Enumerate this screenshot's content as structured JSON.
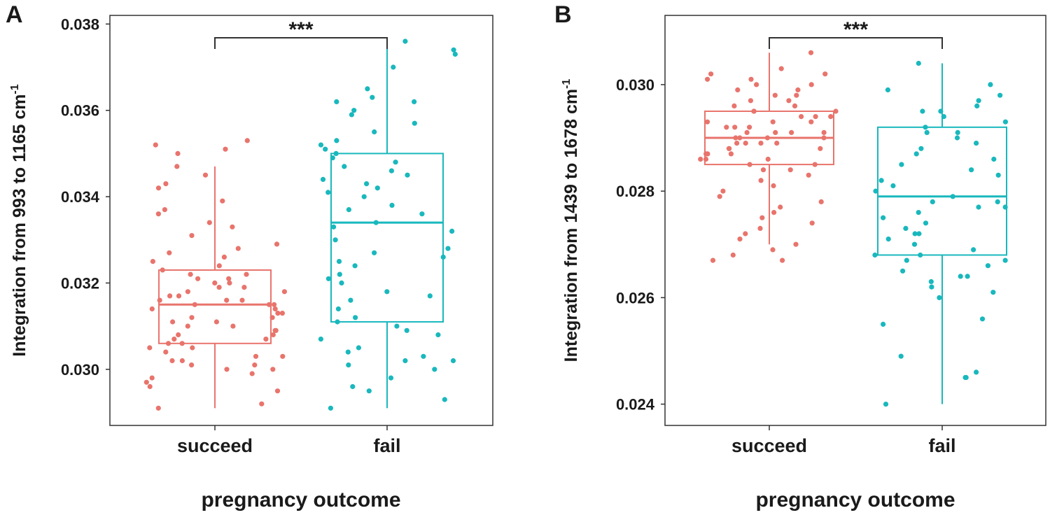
{
  "chart_data": [
    {
      "type": "box",
      "panel_label": "A",
      "significance": "***",
      "xlabel": "pregnancy outcome",
      "ylabel_main": "Integration from 993 to 1165 cm",
      "ylabel_sup": "-1",
      "categories": [
        "succeed",
        "fail"
      ],
      "ylim": [
        0.0287,
        0.0382
      ],
      "yticks": [
        0.03,
        0.032,
        0.034,
        0.036,
        0.038
      ],
      "ytick_labels": [
        "0.030",
        "0.032",
        "0.034",
        "0.036",
        "0.038"
      ],
      "colors": [
        "#e8746c",
        "#19b8bd"
      ],
      "boxes": [
        {
          "name": "succeed",
          "whisker_low": 0.0291,
          "q1": 0.0306,
          "median": 0.0315,
          "q3": 0.0323,
          "whisker_high": 0.0347
        },
        {
          "name": "fail",
          "whisker_low": 0.0291,
          "q1": 0.0311,
          "median": 0.0334,
          "q3": 0.035,
          "whisker_high": 0.0376
        }
      ],
      "points": [
        [
          0.0291,
          0.0292,
          0.0295,
          0.0296,
          0.0297,
          0.0298,
          0.0299,
          0.03,
          0.03,
          0.0301,
          0.0301,
          0.0302,
          0.0302,
          0.0303,
          0.0303,
          0.0304,
          0.0305,
          0.0305,
          0.0306,
          0.0306,
          0.0307,
          0.0307,
          0.0308,
          0.0308,
          0.0309,
          0.0309,
          0.031,
          0.031,
          0.0311,
          0.0311,
          0.0312,
          0.0312,
          0.0313,
          0.0313,
          0.0314,
          0.0314,
          0.0315,
          0.0315,
          0.0315,
          0.0316,
          0.0316,
          0.0316,
          0.0317,
          0.0317,
          0.0318,
          0.0318,
          0.0319,
          0.0319,
          0.032,
          0.032,
          0.0321,
          0.0321,
          0.0322,
          0.0322,
          0.0323,
          0.0324,
          0.0325,
          0.0326,
          0.0327,
          0.0328,
          0.0329,
          0.0331,
          0.0333,
          0.0334,
          0.0336,
          0.0337,
          0.0339,
          0.0342,
          0.0343,
          0.0345,
          0.0347,
          0.035,
          0.0351,
          0.0352,
          0.0353
        ],
        [
          0.0291,
          0.0293,
          0.0295,
          0.0296,
          0.0298,
          0.03,
          0.0301,
          0.0302,
          0.0302,
          0.0303,
          0.0304,
          0.0305,
          0.0307,
          0.0308,
          0.0309,
          0.031,
          0.0311,
          0.0312,
          0.0314,
          0.0316,
          0.0317,
          0.0318,
          0.032,
          0.0321,
          0.0322,
          0.0324,
          0.0325,
          0.0326,
          0.0327,
          0.0328,
          0.033,
          0.0332,
          0.0333,
          0.0334,
          0.0336,
          0.0337,
          0.0338,
          0.034,
          0.0341,
          0.0342,
          0.0343,
          0.0344,
          0.0345,
          0.0346,
          0.0347,
          0.0348,
          0.0349,
          0.035,
          0.0351,
          0.0352,
          0.0353,
          0.0355,
          0.0357,
          0.0359,
          0.036,
          0.0362,
          0.0362,
          0.0363,
          0.0365,
          0.037,
          0.0373,
          0.0374,
          0.0376
        ]
      ]
    },
    {
      "type": "box",
      "panel_label": "B",
      "significance": "***",
      "xlabel": "pregnancy outcome",
      "ylabel_main": "Integration from 1439 to 1678 cm",
      "ylabel_sup": "-1",
      "categories": [
        "succeed",
        "fail"
      ],
      "ylim": [
        0.0236,
        0.0313
      ],
      "yticks": [
        0.024,
        0.026,
        0.028,
        0.03
      ],
      "ytick_labels": [
        "0.024",
        "0.026",
        "0.028",
        "0.030"
      ],
      "colors": [
        "#e8746c",
        "#19b8bd"
      ],
      "boxes": [
        {
          "name": "succeed",
          "whisker_low": 0.027,
          "q1": 0.0285,
          "median": 0.029,
          "q3": 0.0295,
          "whisker_high": 0.0306
        },
        {
          "name": "fail",
          "whisker_low": 0.024,
          "q1": 0.0268,
          "median": 0.0279,
          "q3": 0.0292,
          "whisker_high": 0.0304
        }
      ],
      "points": [
        [
          0.0267,
          0.0267,
          0.0268,
          0.0269,
          0.027,
          0.0271,
          0.0272,
          0.0273,
          0.0274,
          0.0275,
          0.0276,
          0.0277,
          0.0278,
          0.0279,
          0.028,
          0.0281,
          0.0282,
          0.0283,
          0.0284,
          0.0284,
          0.0285,
          0.0285,
          0.0286,
          0.0286,
          0.0286,
          0.0287,
          0.0287,
          0.0287,
          0.0288,
          0.0288,
          0.0288,
          0.0289,
          0.0289,
          0.0289,
          0.0289,
          0.029,
          0.029,
          0.029,
          0.029,
          0.0291,
          0.0291,
          0.0291,
          0.0291,
          0.0292,
          0.0292,
          0.0292,
          0.0293,
          0.0293,
          0.0293,
          0.0294,
          0.0294,
          0.0294,
          0.0295,
          0.0295,
          0.0295,
          0.0296,
          0.0296,
          0.0297,
          0.0297,
          0.0298,
          0.0298,
          0.0299,
          0.0299,
          0.03,
          0.03,
          0.0301,
          0.0301,
          0.0302,
          0.0302,
          0.0303,
          0.0306
        ],
        [
          0.024,
          0.0245,
          0.0245,
          0.0246,
          0.0249,
          0.0255,
          0.0256,
          0.026,
          0.0261,
          0.0262,
          0.0263,
          0.0264,
          0.0264,
          0.0265,
          0.0266,
          0.0267,
          0.0267,
          0.0268,
          0.0268,
          0.0269,
          0.027,
          0.0271,
          0.0272,
          0.0272,
          0.0273,
          0.0274,
          0.0275,
          0.0276,
          0.0277,
          0.0277,
          0.0278,
          0.0278,
          0.0279,
          0.028,
          0.0281,
          0.0282,
          0.0283,
          0.0284,
          0.0285,
          0.0286,
          0.0287,
          0.0288,
          0.0289,
          0.029,
          0.0291,
          0.0291,
          0.0292,
          0.0293,
          0.0294,
          0.0295,
          0.0295,
          0.0296,
          0.0297,
          0.0298,
          0.0299,
          0.03,
          0.0304
        ]
      ]
    }
  ]
}
